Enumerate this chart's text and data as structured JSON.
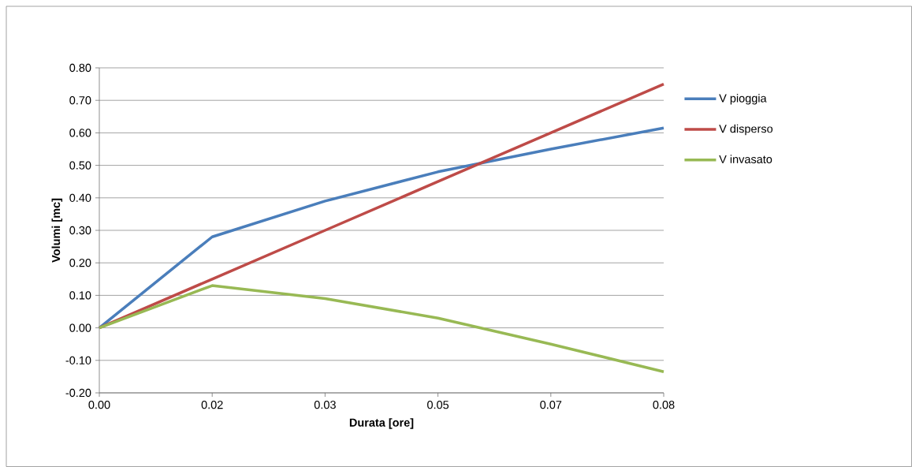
{
  "chart_data": {
    "type": "line",
    "xlabel": "Durata [ore]",
    "ylabel": "Volumi [mc]",
    "categories": [
      "0.00",
      "0.02",
      "0.03",
      "0.05",
      "0.07",
      "0.08"
    ],
    "series": [
      {
        "name": "V pioggia",
        "color": "#4a7ebb",
        "values": [
          0,
          0.28,
          0.39,
          0.48,
          0.55,
          0.615
        ]
      },
      {
        "name": "V disperso",
        "color": "#be4b48",
        "values": [
          0,
          0.15,
          0.3,
          0.45,
          0.6,
          0.75
        ]
      },
      {
        "name": "V invasato",
        "color": "#98b954",
        "values": [
          0,
          0.13,
          0.09,
          0.03,
          -0.05,
          -0.135
        ]
      }
    ],
    "ylim": [
      -0.2,
      0.8
    ],
    "yticks": [
      {
        "value": -0.2,
        "label": "-0.20"
      },
      {
        "value": -0.1,
        "label": "-0.10"
      },
      {
        "value": 0,
        "label": "0.00"
      },
      {
        "value": 0.1,
        "label": "0.10"
      },
      {
        "value": 0.2,
        "label": "0.20"
      },
      {
        "value": 0.3,
        "label": "0.30"
      },
      {
        "value": 0.4,
        "label": "0.40"
      },
      {
        "value": 0.5,
        "label": "0.50"
      },
      {
        "value": 0.6,
        "label": "0.60"
      },
      {
        "value": 0.7,
        "label": "0.70"
      },
      {
        "value": 0.8,
        "label": "0.80"
      }
    ],
    "grid": "y",
    "legend": "right",
    "marker": "none",
    "line_style": "solid"
  }
}
